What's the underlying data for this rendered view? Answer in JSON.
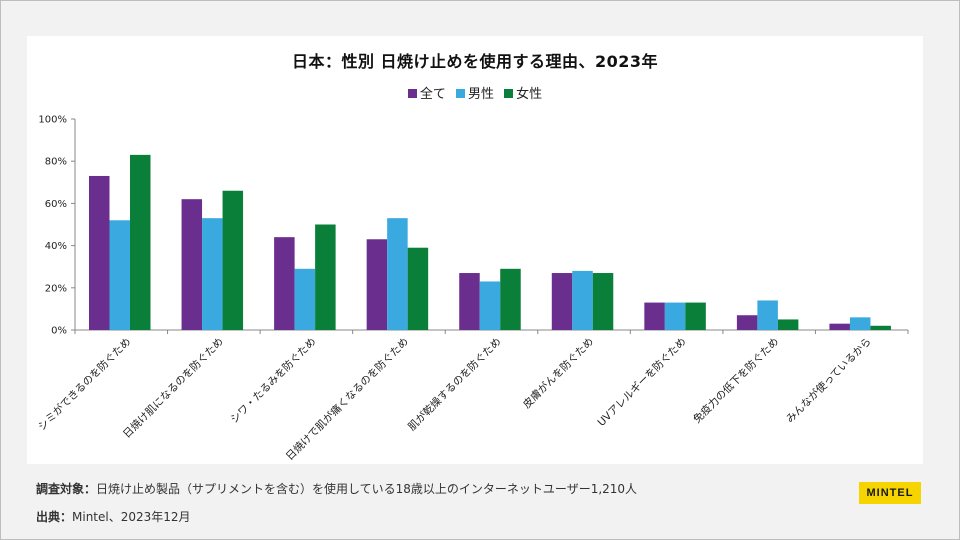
{
  "colors": {
    "all": "#6a2e8e",
    "male": "#3aa9e0",
    "female": "#0a7f3a"
  },
  "chart_data": {
    "type": "bar",
    "title": "日本：性別 日焼け止めを使用する理由、2023年",
    "categories": [
      "シミができるのを防ぐため",
      "日焼け肌になるのを防ぐため",
      "シワ・たるみを防ぐため",
      "日焼けで肌が痛くなるのを防ぐため",
      "肌が乾燥するのを防ぐため",
      "皮膚がんを防ぐため",
      "UVアレルギーを防ぐため",
      "免疫力の低下を防ぐため",
      "みんなが使っているから"
    ],
    "series": [
      {
        "name": "全て",
        "values": [
          73,
          62,
          44,
          43,
          27,
          27,
          13,
          7,
          3
        ]
      },
      {
        "name": "男性",
        "values": [
          52,
          53,
          29,
          53,
          23,
          28,
          13,
          14,
          6
        ]
      },
      {
        "name": "女性",
        "values": [
          83,
          66,
          50,
          39,
          29,
          27,
          13,
          5,
          2
        ]
      }
    ],
    "yticks": [
      "0%",
      "20%",
      "40%",
      "60%",
      "80%",
      "100%"
    ],
    "ylim": [
      0,
      100
    ],
    "xlabel": "",
    "ylabel": "",
    "legend_position": "top-center",
    "grid": false
  },
  "footer": {
    "target_label": "調査対象：",
    "target_text": "日焼け止め製品（サプリメントを含む）を使用している18歳以上のインターネットユーザー1,210人",
    "source_label": "出典：",
    "source_text": "Mintel、2023年12月"
  },
  "logo_text": "MINTEL"
}
